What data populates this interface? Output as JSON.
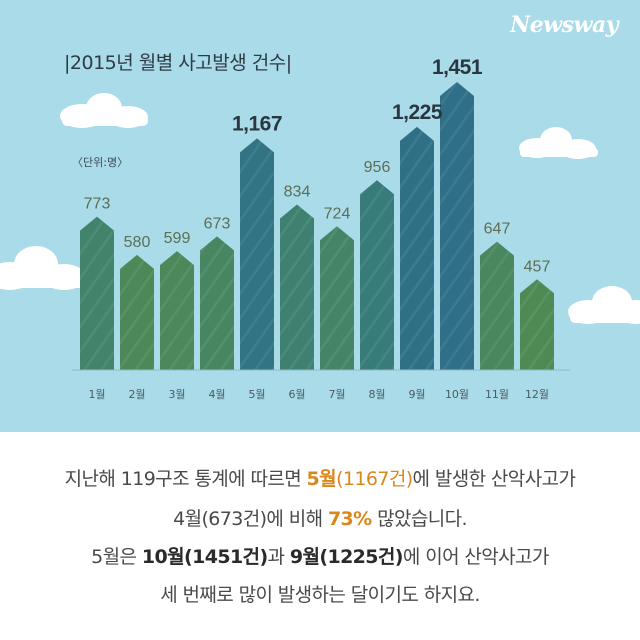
{
  "brand": "Newsway",
  "chart_data": {
    "type": "bar",
    "title": "|2015년 월별 사고발생 건수|",
    "unit": "〈단위:명〉",
    "categories": [
      "1월",
      "2월",
      "3월",
      "4월",
      "5월",
      "6월",
      "7월",
      "8월",
      "9월",
      "10월",
      "11월",
      "12월"
    ],
    "values": [
      773,
      580,
      599,
      673,
      1167,
      834,
      724,
      956,
      1225,
      1451,
      647,
      457
    ],
    "value_labels": [
      "773",
      "580",
      "599",
      "673",
      "1,167",
      "834",
      "724",
      "956",
      "1,225",
      "1,451",
      "647",
      "457"
    ],
    "highlight_labels": [
      4,
      8,
      9
    ],
    "ylim": [
      0,
      1500
    ],
    "colors": {
      "sky": "#a9dbe9",
      "bar_blue": "#2f6f88",
      "bar_teal": "#3a7f77",
      "bar_green": "#4f8a55",
      "label": "#5e6e54",
      "label_highlight": "#2a3640"
    }
  },
  "caption": {
    "line1": {
      "a": "지난해 119구조 통계에 따르면 ",
      "b": "5월",
      "c": "(1167건)",
      "d": "에 발생한 산악사고가"
    },
    "line2": {
      "a": "4월(673건)에 비해 ",
      "b": "73%",
      "c": " 많았습니다."
    },
    "line3": {
      "a": "5월은 ",
      "b": "10월(1451건)",
      "c": "과 ",
      "d": "9월(1225건)",
      "e": "에 이어 산악사고가"
    },
    "line4": "세 번째로 많이 발생하는 달이기도 하지요."
  }
}
